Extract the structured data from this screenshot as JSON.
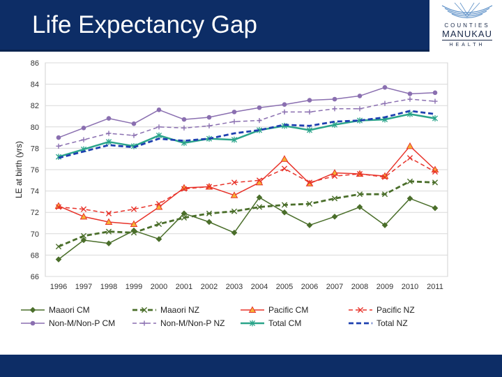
{
  "slide": {
    "title": "Life Expectancy Gap",
    "logo": {
      "line1": "COUNTIES",
      "line2": "MANUKAU",
      "line3": "HEALTH",
      "icon": "wave-logo-icon"
    },
    "colors": {
      "header": "#0d2d66",
      "footer": "#0d2d66"
    }
  },
  "chart_data": {
    "type": "line",
    "ylabel": "LE at birth (yrs)",
    "xlabel": "",
    "ylim": [
      66,
      86
    ],
    "yticks": [
      "66",
      "68",
      "70",
      "72",
      "74",
      "76",
      "78",
      "80",
      "82",
      "84",
      "86"
    ],
    "categories": [
      "1996",
      "1997",
      "1998",
      "1999",
      "2000",
      "2001",
      "2002",
      "2003",
      "2004",
      "2005",
      "2006",
      "2007",
      "2008",
      "2009",
      "2010",
      "2011"
    ],
    "grid": true,
    "legend_position": "bottom",
    "series": [
      {
        "name": "Maaori CM",
        "color": "#4a6e2a",
        "dash": "solid",
        "width": 1.5,
        "marker": "diamond",
        "values": [
          67.6,
          69.4,
          69.1,
          70.3,
          69.5,
          71.9,
          71.1,
          70.1,
          73.4,
          72.0,
          70.8,
          71.6,
          72.5,
          70.8,
          73.3,
          72.4
        ]
      },
      {
        "name": "Maaori NZ",
        "color": "#4a6e2a",
        "dash": "dashed",
        "width": 2.8,
        "marker": "x",
        "values": [
          68.8,
          69.8,
          70.2,
          70.1,
          70.9,
          71.5,
          71.9,
          72.1,
          72.5,
          72.7,
          72.8,
          73.3,
          73.7,
          73.7,
          74.9,
          74.8
        ]
      },
      {
        "name": "Pacific CM",
        "color": "#e8332a",
        "dash": "solid",
        "width": 1.5,
        "marker": "triangle",
        "values": [
          72.6,
          71.6,
          71.1,
          70.9,
          72.5,
          74.3,
          74.4,
          73.6,
          74.8,
          77.0,
          74.7,
          75.7,
          75.6,
          75.4,
          78.2,
          76.0
        ]
      },
      {
        "name": "Pacific NZ",
        "color": "#e8332a",
        "dash": "dashed",
        "width": 1.5,
        "marker": "x",
        "values": [
          72.5,
          72.3,
          71.9,
          72.3,
          72.8,
          74.2,
          74.4,
          74.8,
          75.0,
          76.1,
          74.8,
          75.4,
          75.6,
          75.3,
          77.1,
          75.8
        ]
      },
      {
        "name": "Non-M/Non-P CM",
        "color": "#8a6fb0",
        "dash": "solid",
        "width": 1.5,
        "marker": "circle",
        "values": [
          79.0,
          79.9,
          80.8,
          80.3,
          81.6,
          80.7,
          80.9,
          81.4,
          81.8,
          82.1,
          82.5,
          82.6,
          82.9,
          83.7,
          83.1,
          83.2
        ]
      },
      {
        "name": "Non-M/Non-P NZ",
        "color": "#8a6fb0",
        "dash": "dashed",
        "width": 1.5,
        "marker": "plus",
        "values": [
          78.2,
          78.8,
          79.4,
          79.2,
          80.0,
          79.9,
          80.1,
          80.5,
          80.6,
          81.4,
          81.4,
          81.7,
          81.7,
          82.2,
          82.6,
          82.4
        ]
      },
      {
        "name": "Total CM",
        "color": "#2aa48a",
        "dash": "solid",
        "width": 2.5,
        "marker": "star",
        "values": [
          77.2,
          77.9,
          78.6,
          78.2,
          79.2,
          78.5,
          78.9,
          78.8,
          79.7,
          80.1,
          79.7,
          80.2,
          80.6,
          80.7,
          81.2,
          80.8
        ]
      },
      {
        "name": "Total NZ",
        "color": "#1e40b0",
        "dash": "dashed",
        "width": 2.8,
        "marker": "none",
        "values": [
          77.1,
          77.7,
          78.3,
          78.1,
          78.9,
          78.7,
          78.9,
          79.4,
          79.7,
          80.2,
          80.1,
          80.5,
          80.6,
          80.9,
          81.5,
          81.2
        ]
      }
    ]
  }
}
